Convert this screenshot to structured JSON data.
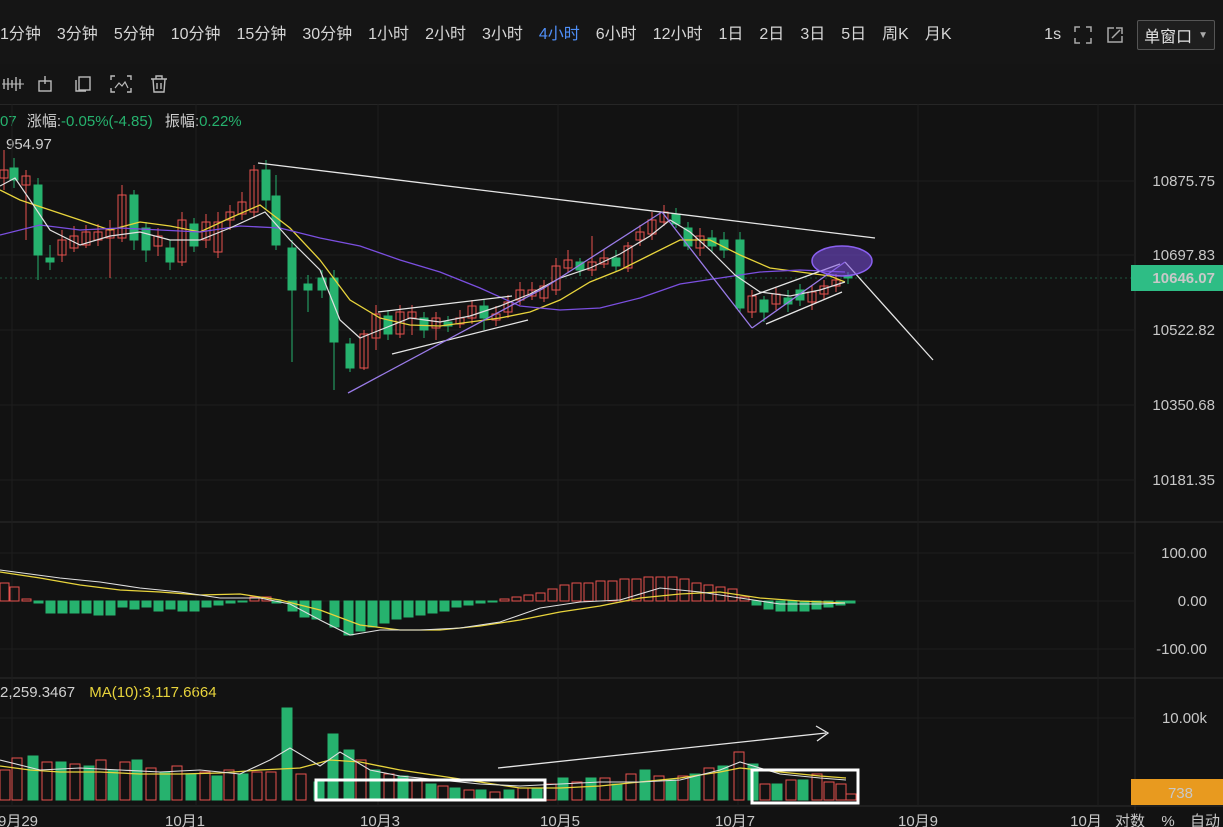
{
  "toolbar": {
    "intervals": [
      "1分钟",
      "3分钟",
      "5分钟",
      "10分钟",
      "15分钟",
      "30分钟",
      "1小时",
      "2小时",
      "3小时",
      "4小时",
      "6小时",
      "12小时",
      "1日",
      "2日",
      "3日",
      "5日",
      "周K",
      "月K"
    ],
    "active_interval": "4小时",
    "realtime_label": "1s",
    "window_mode": "单窗口"
  },
  "drawing_tools": [
    "indicator-icon",
    "text-icon",
    "copy-icon",
    "screenshot-icon",
    "delete-icon"
  ],
  "info": {
    "prefix": "07",
    "change_label": "涨幅:",
    "change_value": "-0.05%(-4.85)",
    "amplitude_label": "振幅:",
    "amplitude_value": "0.22%",
    "high_mark": "954.97"
  },
  "price_axis": {
    "labels": [
      "10875.75",
      "10697.83",
      "10522.82",
      "10350.68",
      "10181.35"
    ],
    "current_price": "10646.07",
    "current_price_color": "#2ebd85"
  },
  "macd_axis": {
    "labels": [
      "100.00",
      "0.00",
      "-100.00"
    ]
  },
  "volume": {
    "value_label": "2,259.3467",
    "ma_label": "MA(10):3,117.6664",
    "axis_label": "10.00k",
    "current_volume": "738",
    "current_volume_color": "#e89a1f"
  },
  "time_axis": {
    "labels": [
      "9月29",
      "10月1",
      "10月3",
      "10月5",
      "10月7",
      "10月9",
      "10月"
    ]
  },
  "footer": {
    "labels": [
      "对数",
      "%",
      "自动"
    ]
  },
  "colors": {
    "up": "#26b26e",
    "down": "#e8524f",
    "background": "#121212",
    "ma_yellow": "#e8d43c",
    "ma_purple": "#7b4fe0",
    "ma_white": "#e0e0e0"
  }
}
